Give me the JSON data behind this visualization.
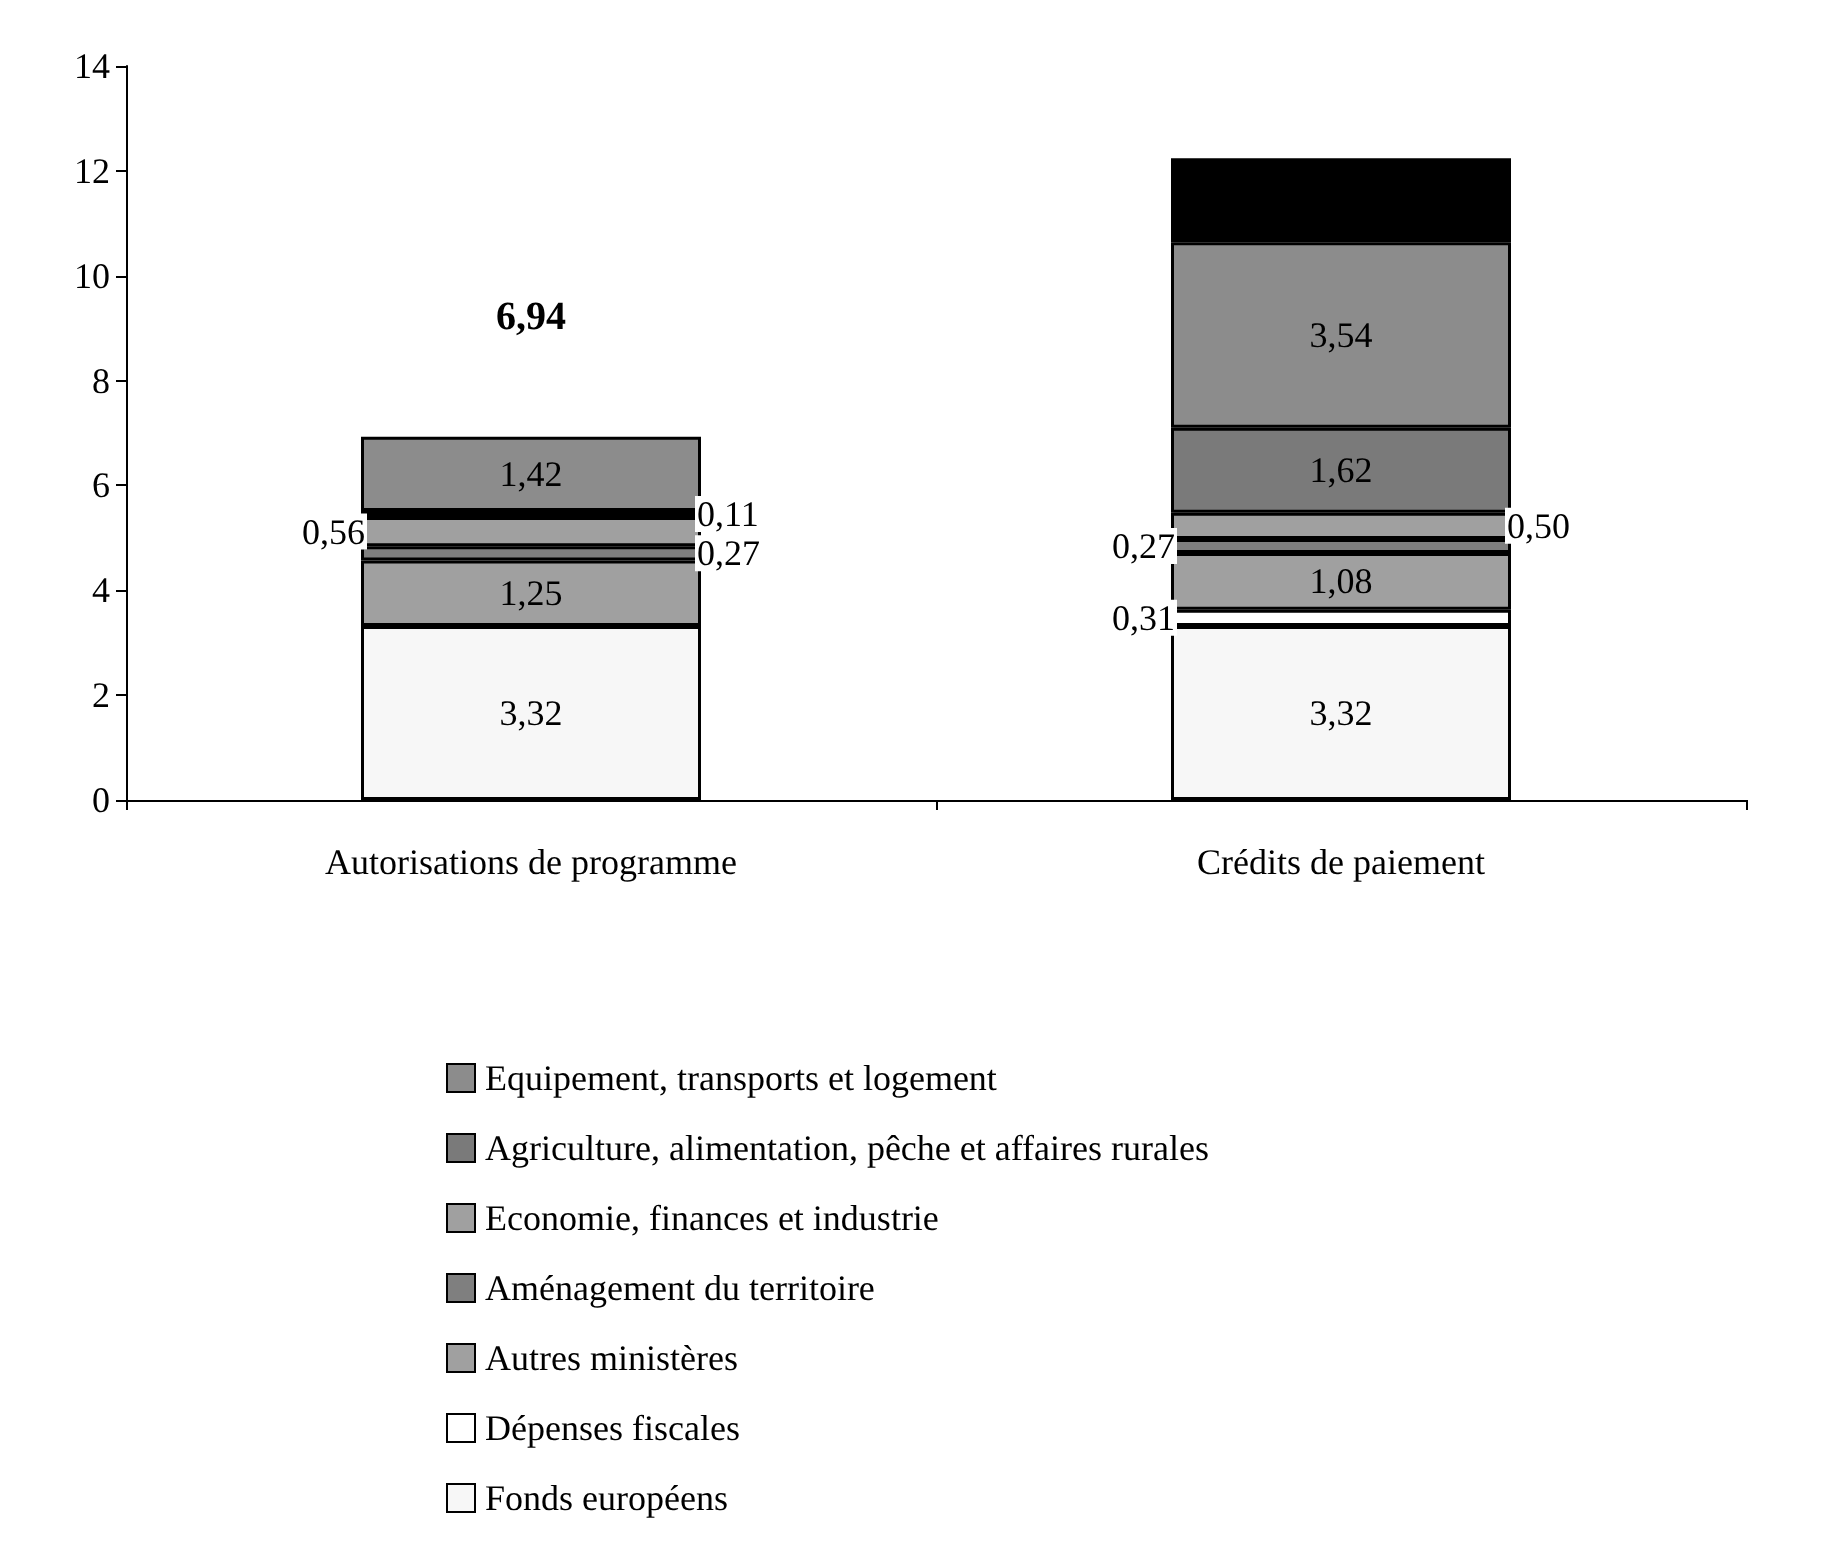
{
  "chart_data": {
    "type": "bar",
    "stacked": true,
    "categories": [
      "Autorisations de programme",
      "Crédits de paiement"
    ],
    "series": [
      {
        "name": "Fonds européens",
        "color": "#f7f7f7",
        "values": [
          3.32,
          3.32
        ],
        "value_labels": [
          "3,32",
          "3,32"
        ]
      },
      {
        "name": "Dépenses fiscales",
        "color": "#ffffff",
        "values": [
          null,
          0.31
        ],
        "value_labels": [
          null,
          "0,31"
        ]
      },
      {
        "name": "Autres ministères",
        "color": "#a0a0a0",
        "values": [
          1.25,
          1.08
        ],
        "value_labels": [
          "1,25",
          "1,08"
        ]
      },
      {
        "name": "Aménagement du territoire",
        "color": "#7f7f7f",
        "values": [
          0.27,
          0.27
        ],
        "value_labels": [
          "0,27",
          "0,27"
        ]
      },
      {
        "name": "Economie, finances et industrie",
        "color": "#a0a0a0",
        "values": [
          0.56,
          0.5
        ],
        "value_labels": [
          "0,56",
          "0,50"
        ]
      },
      {
        "name": "Agriculture, alimentation, pêche et affaires rurales",
        "color": "#7a7a7a",
        "values": [
          0.11,
          1.62
        ],
        "value_labels": [
          "0,11",
          "1,62"
        ]
      },
      {
        "name": "Equipement, transports et logement",
        "color": "#8c8c8c",
        "values": [
          1.42,
          3.54
        ],
        "value_labels": [
          "1,42",
          "3,54"
        ]
      },
      {
        "color": "#000000",
        "values": [
          null,
          1.6
        ]
      }
    ],
    "totals": [
      "6,94",
      null
    ],
    "ylim": [
      0,
      14
    ],
    "yticks": [
      0,
      2,
      4,
      6,
      8,
      10,
      12,
      14
    ],
    "grid": false,
    "legend": "bottom"
  }
}
